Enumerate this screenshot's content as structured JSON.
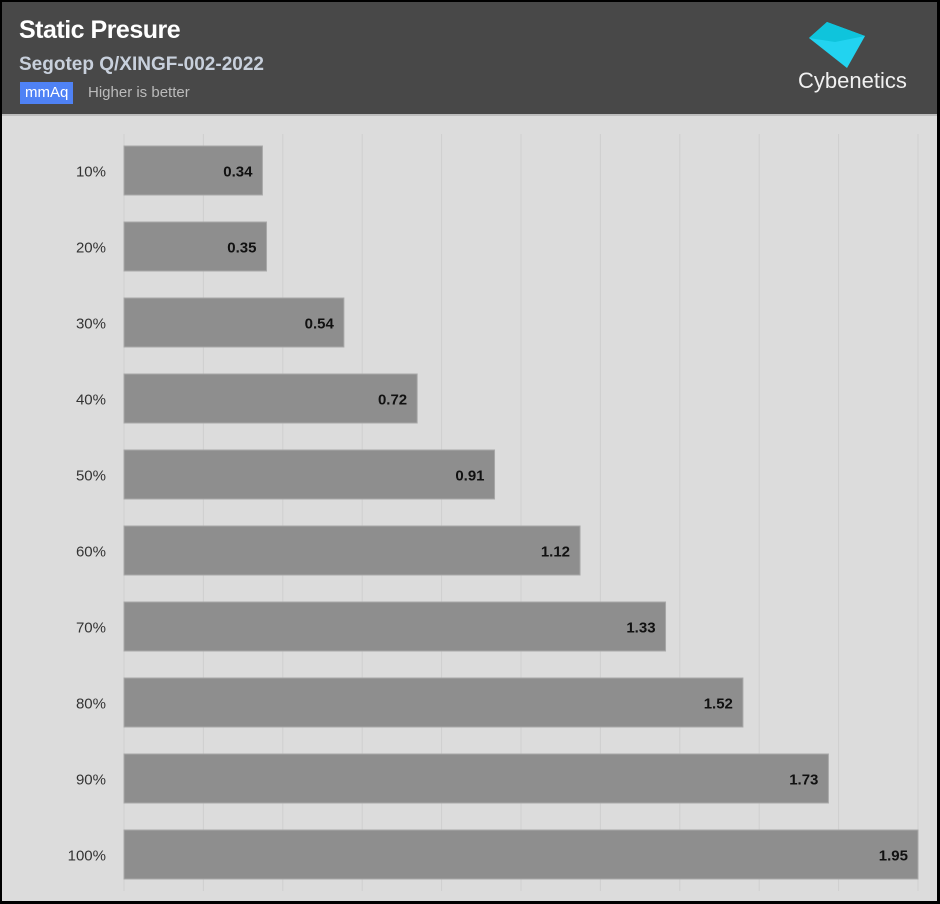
{
  "header": {
    "title": "Static Presure",
    "subtitle": "Segotep Q/XINGF-002-2022",
    "unit_badge": "mmAq",
    "note": "Higher is better",
    "logo_text": "Cybenetics"
  },
  "colors": {
    "bar": "#8e8e8e",
    "header_bg": "#484848",
    "plot_bg": "#dcdcdc",
    "grid": "#cfcfcf",
    "badge": "#4f82f5",
    "logo": "#22d3f0"
  },
  "chart_data": {
    "type": "bar",
    "orientation": "horizontal",
    "title": "Static Presure",
    "subtitle": "Segotep Q/XINGF-002-2022",
    "xlabel": "mmAq",
    "ylabel": "",
    "categories": [
      "10%",
      "20%",
      "30%",
      "40%",
      "50%",
      "60%",
      "70%",
      "80%",
      "90%",
      "100%"
    ],
    "values": [
      0.34,
      0.35,
      0.54,
      0.72,
      0.91,
      1.12,
      1.33,
      1.52,
      1.73,
      1.95
    ],
    "xlim": [
      0,
      1.95
    ],
    "grid": true,
    "grid_divisions": 10,
    "legend": "none"
  }
}
